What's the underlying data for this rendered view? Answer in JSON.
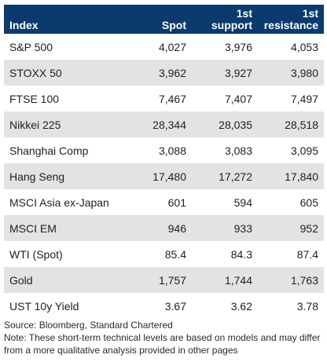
{
  "header": {
    "columns": [
      "Index",
      "Spot",
      "1st support",
      "1st resistance"
    ],
    "col2_line1": "1st",
    "col2_line2": "support",
    "col3_line1": "1st",
    "col3_line2": "resistance"
  },
  "rows": [
    {
      "index": "S&P 500",
      "spot": "4,027",
      "support": "3,976",
      "resistance": "4,053"
    },
    {
      "index": "STOXX 50",
      "spot": "3,962",
      "support": "3,927",
      "resistance": "3,980"
    },
    {
      "index": "FTSE 100",
      "spot": "7,467",
      "support": "7,407",
      "resistance": "7,497"
    },
    {
      "index": "Nikkei 225",
      "spot": "28,344",
      "support": "28,035",
      "resistance": "28,518"
    },
    {
      "index": "Shanghai Comp",
      "spot": "3,088",
      "support": "3,083",
      "resistance": "3,095"
    },
    {
      "index": "Hang Seng",
      "spot": "17,480",
      "support": "17,272",
      "resistance": "17,840"
    },
    {
      "index": "MSCI Asia ex-Japan",
      "spot": "601",
      "support": "594",
      "resistance": "605"
    },
    {
      "index": "MSCI EM",
      "spot": "946",
      "support": "933",
      "resistance": "952"
    },
    {
      "index": "WTI (Spot)",
      "spot": "85.4",
      "support": "84.3",
      "resistance": "87.4"
    },
    {
      "index": "Gold",
      "spot": "1,757",
      "support": "1,744",
      "resistance": "1,763"
    },
    {
      "index": "UST 10y Yield",
      "spot": "3.67",
      "support": "3.62",
      "resistance": "3.78"
    }
  ],
  "footer": {
    "source": "Source: Bloomberg, Standard Chartered",
    "note": "Note: These short-term technical levels are based on models and may differ from a more qualitative analysis provided in other pages"
  },
  "colors": {
    "header_bg": "#0b3b6e",
    "row_shade": "#e3e3e3"
  }
}
